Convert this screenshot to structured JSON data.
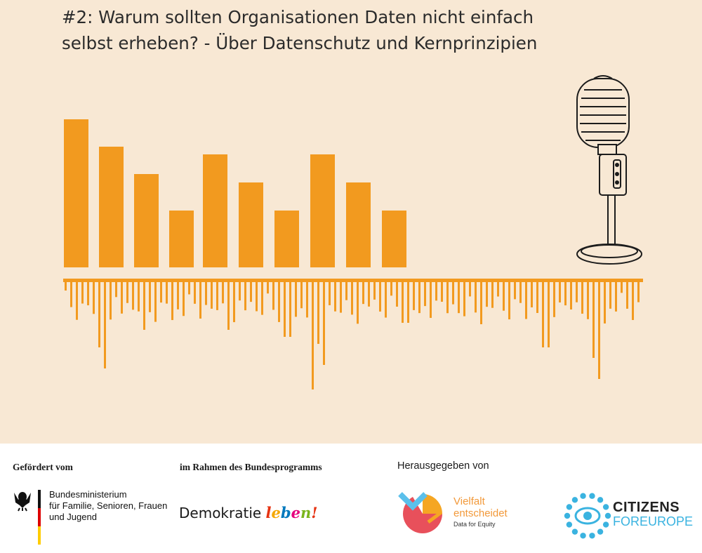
{
  "title": "#2: Warum sollten Organisationen Daten nicht einfach selbst erheben? - Über Datenschutz und Kernprinzipien",
  "colors": {
    "background": "#f8e8d4",
    "accent": "#f29a1f",
    "footer_background": "#ffffff"
  },
  "icons": {
    "microphone": "vintage-microphone-icon",
    "federal_eagle": "federal-eagle-icon"
  },
  "footer": {
    "funded_label": "Gefördert vom",
    "ministry_lines": [
      "Bundesministerium",
      "für Familie, Senioren, Frauen",
      "und Jugend"
    ],
    "program_label": "im Rahmen des Bundesprogramms",
    "program_logo_text_a": "Demokratie",
    "program_logo_text_b": "leben!",
    "publisher_label": "Herausgegeben von",
    "publisher1_line1": "Vielfalt",
    "publisher1_line2": "entscheidet",
    "publisher1_tagline": "Data for Equity",
    "publisher2_line1": "CITIZENS",
    "publisher2_line2a": "FOR",
    "publisher2_line2b": "EUROPE"
  }
}
